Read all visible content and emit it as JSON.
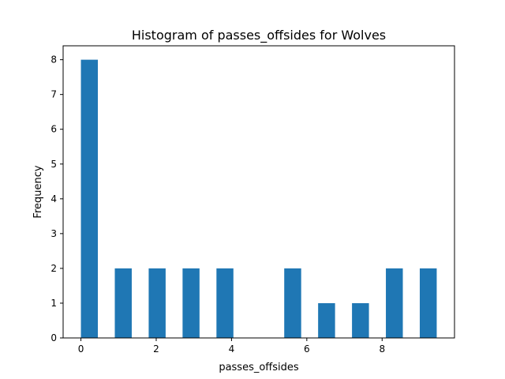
{
  "chart_data": {
    "type": "bar",
    "title": "Histogram of passes_offsides for Wolves",
    "xlabel": "passes_offsides",
    "ylabel": "Frequency",
    "bins": [
      {
        "start": 0.0,
        "end": 0.45,
        "count": 8
      },
      {
        "start": 0.9,
        "end": 1.35,
        "count": 2
      },
      {
        "start": 1.8,
        "end": 2.25,
        "count": 2
      },
      {
        "start": 2.7,
        "end": 3.15,
        "count": 2
      },
      {
        "start": 3.6,
        "end": 4.05,
        "count": 2
      },
      {
        "start": 4.5,
        "end": 4.95,
        "count": 0
      },
      {
        "start": 5.4,
        "end": 5.85,
        "count": 2
      },
      {
        "start": 6.3,
        "end": 6.75,
        "count": 1
      },
      {
        "start": 7.2,
        "end": 7.65,
        "count": 1
      },
      {
        "start": 8.1,
        "end": 8.55,
        "count": 2
      },
      {
        "start": 9.0,
        "end": 9.45,
        "count": 2
      }
    ],
    "xlim": [
      -0.4725,
      9.9225
    ],
    "ylim": [
      0,
      8.4
    ],
    "xticks": [
      0,
      2,
      4,
      6,
      8
    ],
    "yticks": [
      0,
      1,
      2,
      3,
      4,
      5,
      6,
      7,
      8
    ],
    "bar_color": "#1f77b4",
    "grid": false,
    "legend": "none"
  }
}
